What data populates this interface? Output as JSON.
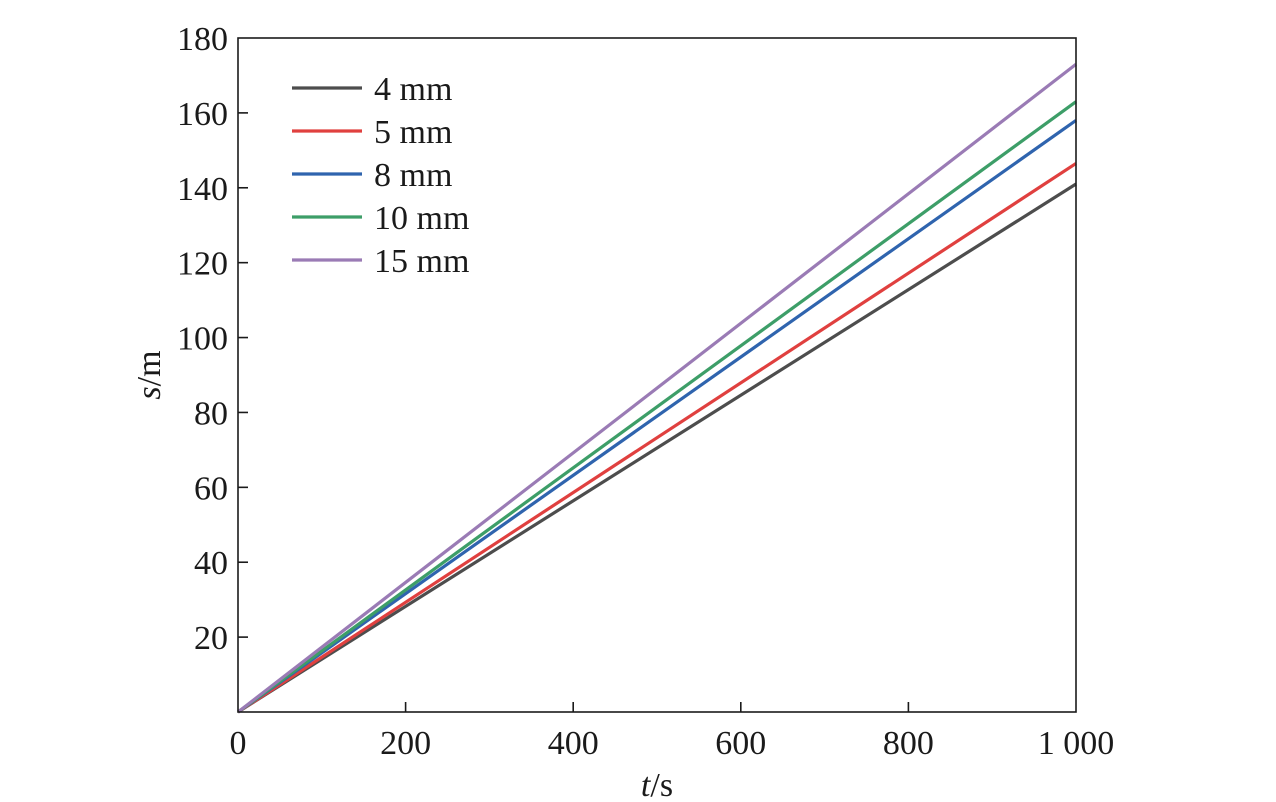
{
  "chart_data": {
    "type": "line",
    "xlabel_var": "t",
    "xlabel_unit": "/s",
    "ylabel_var": "s",
    "ylabel_unit": "/m",
    "xlim": [
      0,
      1000
    ],
    "ylim": [
      0,
      180
    ],
    "x_ticks": [
      0,
      200,
      400,
      600,
      800,
      1000
    ],
    "x_tick_labels": [
      "0",
      "200",
      "400",
      "600",
      "800",
      "1 000"
    ],
    "y_ticks": [
      20,
      40,
      60,
      80,
      100,
      120,
      140,
      160,
      180
    ],
    "y_tick_labels": [
      "20",
      "40",
      "60",
      "80",
      "100",
      "120",
      "140",
      "160",
      "180"
    ],
    "grid": false,
    "legend_position": "top-left",
    "series": [
      {
        "name": "4 mm",
        "color": "#4d4d4d",
        "x": [
          0,
          1000
        ],
        "y": [
          0,
          141
        ]
      },
      {
        "name": "5 mm",
        "color": "#e0403f",
        "x": [
          0,
          1000
        ],
        "y": [
          0,
          146.5
        ]
      },
      {
        "name": "8 mm",
        "color": "#2f64ae",
        "x": [
          0,
          1000
        ],
        "y": [
          0,
          158
        ]
      },
      {
        "name": "10 mm",
        "color": "#3d9e68",
        "x": [
          0,
          1000
        ],
        "y": [
          0,
          163
        ]
      },
      {
        "name": "15 mm",
        "color": "#9a7bb5",
        "x": [
          0,
          1000
        ],
        "y": [
          0,
          173
        ]
      }
    ]
  }
}
